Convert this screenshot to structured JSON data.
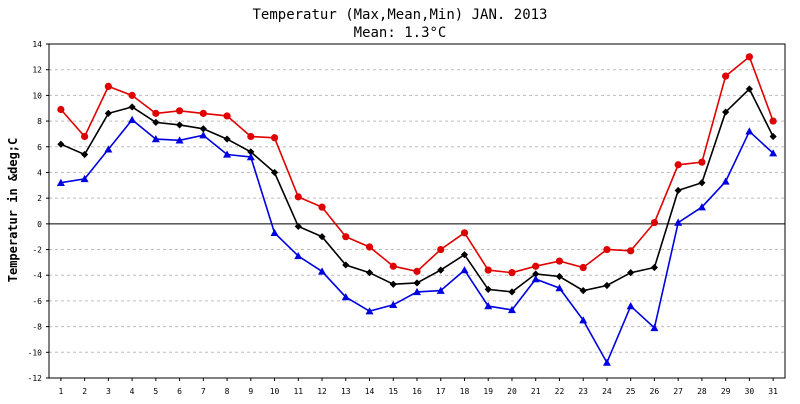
{
  "chart_data": {
    "type": "line",
    "title": "Temperatur (Max,Mean,Min) JAN. 2013",
    "subtitle": "Mean: 1.3°C",
    "ylabel": "Temperatur in &deg;C",
    "xlabel": "",
    "ylim": [
      -12,
      14
    ],
    "yticks": [
      -12,
      -10,
      -8,
      -6,
      -4,
      -2,
      0,
      2,
      4,
      6,
      8,
      10,
      12,
      14
    ],
    "categories": [
      "1",
      "2",
      "3",
      "4",
      "5",
      "6",
      "7",
      "8",
      "9",
      "10",
      "11",
      "12",
      "13",
      "14",
      "15",
      "16",
      "17",
      "18",
      "19",
      "20",
      "21",
      "22",
      "23",
      "24",
      "25",
      "26",
      "27",
      "28",
      "29",
      "30",
      "31"
    ],
    "grid": true,
    "series": [
      {
        "color": "#e00000",
        "marker": "circle",
        "values": [
          8.9,
          6.8,
          10.7,
          10.0,
          8.6,
          8.8,
          8.6,
          8.4,
          6.8,
          6.7,
          2.1,
          1.3,
          -1.0,
          -1.8,
          -3.3,
          -3.7,
          -2.0,
          -0.7,
          -3.6,
          -3.8,
          -3.3,
          -2.9,
          -3.4,
          -2.0,
          -2.1,
          0.1,
          4.6,
          4.8,
          11.5,
          13.0,
          8.0
        ]
      },
      {
        "color": "#000000",
        "marker": "diamond",
        "values": [
          6.2,
          5.4,
          8.6,
          9.1,
          7.9,
          7.7,
          7.4,
          6.6,
          5.6,
          4.0,
          -0.2,
          -1.0,
          -3.2,
          -3.8,
          -4.7,
          -4.6,
          -3.6,
          -2.4,
          -5.1,
          -5.3,
          -3.9,
          -4.1,
          -5.2,
          -4.8,
          -3.8,
          -3.4,
          2.6,
          3.2,
          8.7,
          10.5,
          6.8
        ]
      },
      {
        "color": "#0000e0",
        "marker": "triangle",
        "values": [
          3.2,
          3.5,
          5.8,
          8.1,
          6.6,
          6.5,
          6.9,
          5.4,
          5.2,
          -0.7,
          -2.5,
          -3.7,
          -5.7,
          -6.8,
          -6.3,
          -5.3,
          -5.2,
          -3.6,
          -6.4,
          -6.7,
          -4.3,
          -5.0,
          -7.5,
          -10.8,
          -6.4,
          -8.1,
          0.1,
          1.3,
          3.3,
          7.2,
          5.5
        ]
      }
    ]
  }
}
